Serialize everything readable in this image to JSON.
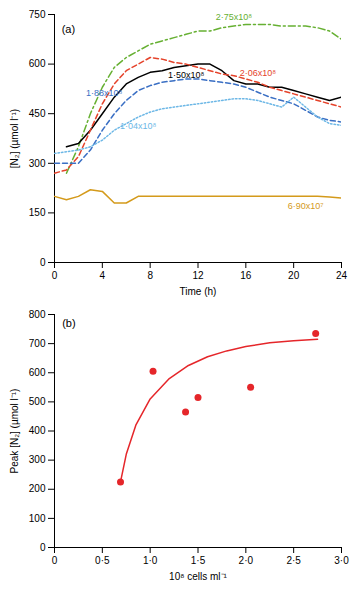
{
  "chart_data": [
    {
      "type": "line",
      "x_label": "Time (h)",
      "y_label": "[N₂] (µmol l⁻¹)",
      "annotations": [
        {
          "text": "(a)",
          "x": 0.6,
          "y": 705
        }
      ],
      "x": [
        0,
        1,
        2,
        3,
        4,
        5,
        6,
        7,
        8,
        9,
        10,
        11,
        12,
        13,
        14,
        15,
        16,
        17,
        18,
        19,
        20,
        21,
        22,
        23,
        24
      ],
      "xlim": [
        0,
        24
      ],
      "xticks": [
        0,
        4,
        8,
        12,
        16,
        20,
        24
      ],
      "ylim": [
        0,
        750
      ],
      "yticks": [
        0,
        150,
        300,
        450,
        600,
        750
      ],
      "series": [
        {
          "name": "2·75x10⁸",
          "color": "#66b032",
          "line_style": "dashdot",
          "values": [
            null,
            270,
            350,
            450,
            530,
            590,
            620,
            640,
            660,
            670,
            680,
            690,
            700,
            700,
            710,
            715,
            720,
            720,
            720,
            715,
            715,
            715,
            710,
            700,
            675
          ]
        },
        {
          "name": "1·50x10⁸",
          "color": "#000000",
          "line_style": "solid",
          "values": [
            null,
            350,
            360,
            400,
            450,
            500,
            540,
            560,
            575,
            580,
            590,
            595,
            600,
            600,
            580,
            550,
            540,
            540,
            530,
            530,
            520,
            510,
            500,
            490,
            500
          ]
        },
        {
          "name": "2·06x10⁸",
          "color": "#e5432b",
          "line_style": "dashed",
          "values": [
            270,
            280,
            320,
            400,
            480,
            540,
            580,
            600,
            620,
            615,
            605,
            600,
            590,
            580,
            570,
            565,
            555,
            545,
            530,
            520,
            510,
            500,
            490,
            480,
            470
          ]
        },
        {
          "name": "1·88x10⁸",
          "color": "#3a6fc4",
          "line_style": "dashed",
          "values": [
            300,
            300,
            300,
            340,
            400,
            450,
            490,
            520,
            535,
            545,
            550,
            555,
            555,
            550,
            545,
            540,
            530,
            515,
            500,
            490,
            480,
            460,
            440,
            430,
            425
          ]
        },
        {
          "name": "1·04x10⁸",
          "color": "#6cb7e6",
          "line_style": "dotted",
          "values": [
            330,
            335,
            340,
            350,
            370,
            400,
            420,
            440,
            455,
            465,
            470,
            475,
            480,
            485,
            490,
            495,
            495,
            490,
            480,
            470,
            500,
            470,
            440,
            420,
            415
          ]
        },
        {
          "name": "6·90x10⁷",
          "color": "#d49a1b",
          "line_style": "solid",
          "values": [
            200,
            190,
            200,
            220,
            215,
            180,
            180,
            200,
            200,
            200,
            200,
            200,
            200,
            200,
            200,
            200,
            200,
            200,
            200,
            200,
            200,
            200,
            200,
            198,
            195
          ]
        }
      ]
    },
    {
      "type": "scatter",
      "x_label": "10⁸ cells ml⁻¹",
      "y_label": "Peak [N₂] (µmol l⁻¹)",
      "annotations": [
        {
          "text": "(b)",
          "x": 0.08,
          "y": 770
        }
      ],
      "xlim": [
        0,
        3
      ],
      "xticks": [
        0,
        {
          "value": 0.5,
          "label": "0·5"
        },
        {
          "value": 1,
          "label": "1·0"
        },
        {
          "value": 1.5,
          "label": "1·5"
        },
        {
          "value": 2,
          "label": "2·0"
        },
        {
          "value": 2.5,
          "label": "2·5"
        },
        {
          "value": 3,
          "label": "3·0"
        }
      ],
      "ylim": [
        0,
        800
      ],
      "yticks": [
        0,
        100,
        200,
        300,
        400,
        500,
        600,
        700,
        800
      ],
      "series": [
        {
          "type": "scatter",
          "color": "#e5262a",
          "marker": "circle",
          "x": [
            0.69,
            1.03,
            1.37,
            1.5,
            2.05,
            2.73
          ],
          "values": [
            225,
            605,
            465,
            515,
            550,
            735
          ]
        },
        {
          "type": "line",
          "color": "#e5262a",
          "line_style": "solid",
          "x": [
            0.69,
            0.75,
            0.85,
            1.0,
            1.2,
            1.4,
            1.6,
            1.8,
            2.0,
            2.25,
            2.5,
            2.75
          ],
          "values": [
            225,
            320,
            420,
            510,
            580,
            625,
            655,
            675,
            690,
            703,
            710,
            715
          ]
        }
      ]
    }
  ]
}
